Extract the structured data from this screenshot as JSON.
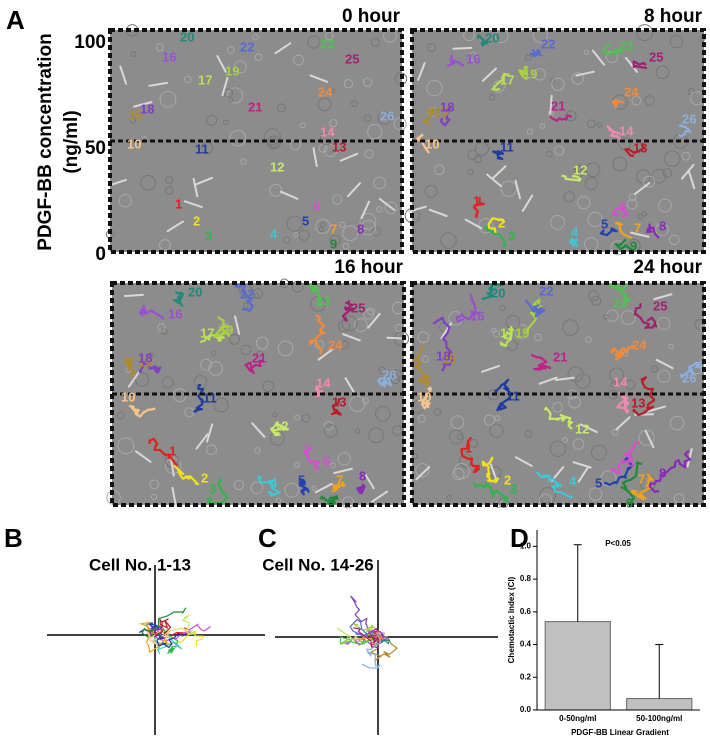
{
  "figure": {
    "panel_letters": [
      "A",
      "B",
      "C",
      "D"
    ],
    "panel_a": {
      "times": [
        "0 hour",
        "8 hour",
        "16 hour",
        "24 hour"
      ],
      "axis_title": [
        "PDGF-BB concentration",
        "(ng/ml)"
      ],
      "ticks": [
        100,
        50,
        0
      ],
      "cells": [
        {
          "label": "1",
          "color": "#e32020"
        },
        {
          "label": "2",
          "color": "#f2e21c"
        },
        {
          "label": "3",
          "color": "#2fb54a"
        },
        {
          "label": "4",
          "color": "#3fc6d8"
        },
        {
          "label": "5",
          "color": "#2340b0"
        },
        {
          "label": "6",
          "color": "#d54fd0"
        },
        {
          "label": "7",
          "color": "#f2a21c"
        },
        {
          "label": "8",
          "color": "#8a2bb8"
        },
        {
          "label": "9",
          "color": "#1e8a3a"
        },
        {
          "label": "10",
          "color": "#f7c58c"
        },
        {
          "label": "11",
          "color": "#1f3aa0"
        },
        {
          "label": "12",
          "color": "#c8e86a"
        },
        {
          "label": "13",
          "color": "#b81d2a"
        },
        {
          "label": "14",
          "color": "#f08ab0"
        },
        {
          "label": "15",
          "color": "#b08a2a"
        },
        {
          "label": "16",
          "color": "#9a4fd0"
        },
        {
          "label": "17",
          "color": "#b8e05a"
        },
        {
          "label": "18",
          "color": "#8040c0"
        },
        {
          "label": "19",
          "color": "#a8d040"
        },
        {
          "label": "20",
          "color": "#1f8a7a"
        },
        {
          "label": "21",
          "color": "#c0208a"
        },
        {
          "label": "22",
          "color": "#5a6ad0"
        },
        {
          "label": "23",
          "color": "#50c050"
        },
        {
          "label": "24",
          "color": "#f28a3a"
        },
        {
          "label": "25",
          "color": "#a02070"
        },
        {
          "label": "26",
          "color": "#8ab0e0"
        }
      ]
    },
    "panel_b": {
      "title": "Cell No. 1-13"
    },
    "panel_c": {
      "title": "Cell No. 14-26"
    }
  },
  "chart_data": {
    "type": "bar",
    "title": "P<0.05",
    "y_label": "Chemotactic Index (CI)",
    "x_label": "PDGF-BB Linear Gradient",
    "categories": [
      "0-50ng/ml",
      "50-100ng/ml"
    ],
    "values": [
      0.54,
      0.07
    ],
    "errors": [
      0.47,
      0.33
    ],
    "color": "#c0c0c0",
    "ylim": [
      0,
      1.1
    ],
    "yticks": [
      {
        "value": 0,
        "label": "0.0"
      },
      {
        "value": 0.2,
        "label": "0.2"
      },
      {
        "value": 0.4,
        "label": "0.4"
      },
      {
        "value": 0.6,
        "label": "0.6"
      },
      {
        "value": 0.8,
        "label": "0.8"
      },
      {
        "value": 1.0,
        "label": "1.0"
      }
    ]
  }
}
